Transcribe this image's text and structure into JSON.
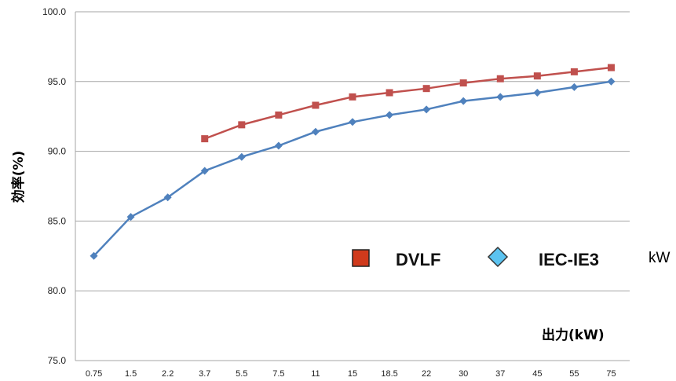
{
  "chart_data": {
    "type": "line",
    "title": "",
    "xlabel": "出力(kW)",
    "ylabel": "効率(%)",
    "unit_label": "kW",
    "categories": [
      "0.75",
      "1.5",
      "2.2",
      "3.7",
      "5.5",
      "7.5",
      "11",
      "15",
      "18.5",
      "22",
      "30",
      "37",
      "45",
      "55",
      "75"
    ],
    "ylim": [
      75.0,
      100.0
    ],
    "yticks": [
      "75.0",
      "80.0",
      "85.0",
      "90.0",
      "95.0",
      "100.0"
    ],
    "grid": "horizontal",
    "legend_position": "bottom-right",
    "series": [
      {
        "name": "DVLF",
        "color": "#c0504d",
        "marker": "square",
        "values": [
          null,
          null,
          null,
          90.9,
          91.9,
          92.6,
          93.3,
          93.9,
          94.2,
          94.5,
          94.9,
          95.2,
          95.4,
          95.7,
          96.0
        ]
      },
      {
        "name": "IEC-IE3",
        "color": "#4f81bd",
        "marker": "diamond",
        "values": [
          82.5,
          85.3,
          86.7,
          88.6,
          89.6,
          90.4,
          91.4,
          92.1,
          92.6,
          93.0,
          93.6,
          93.9,
          94.2,
          94.6,
          95.0
        ]
      }
    ],
    "legend_colors": {
      "DVLF_fill": "#d03a1c",
      "IEC_fill": "#5bc3f0"
    }
  }
}
